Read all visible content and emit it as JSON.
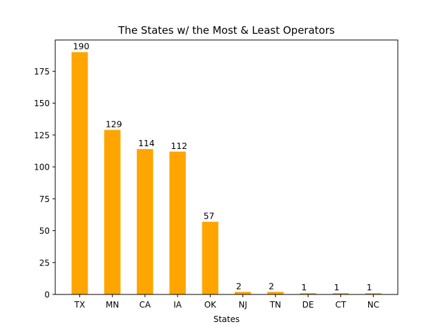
{
  "chart_data": {
    "type": "bar",
    "title": "The States w/ the Most & Least Operators",
    "xlabel": "States",
    "ylabel": "",
    "categories": [
      "TX",
      "MN",
      "CA",
      "IA",
      "OK",
      "NJ",
      "TN",
      "DE",
      "CT",
      "NC"
    ],
    "values": [
      190,
      129,
      114,
      112,
      57,
      2,
      2,
      1,
      1,
      1
    ],
    "data_labels": [
      "190",
      "129",
      "114",
      "112",
      "57",
      "2",
      "2",
      "1",
      "1",
      "1"
    ],
    "yticks": [
      0,
      25,
      50,
      75,
      100,
      125,
      150,
      175
    ],
    "ylim": [
      0,
      199.5
    ],
    "bar_color": "#ffa500",
    "grid": false,
    "legend": "none"
  }
}
